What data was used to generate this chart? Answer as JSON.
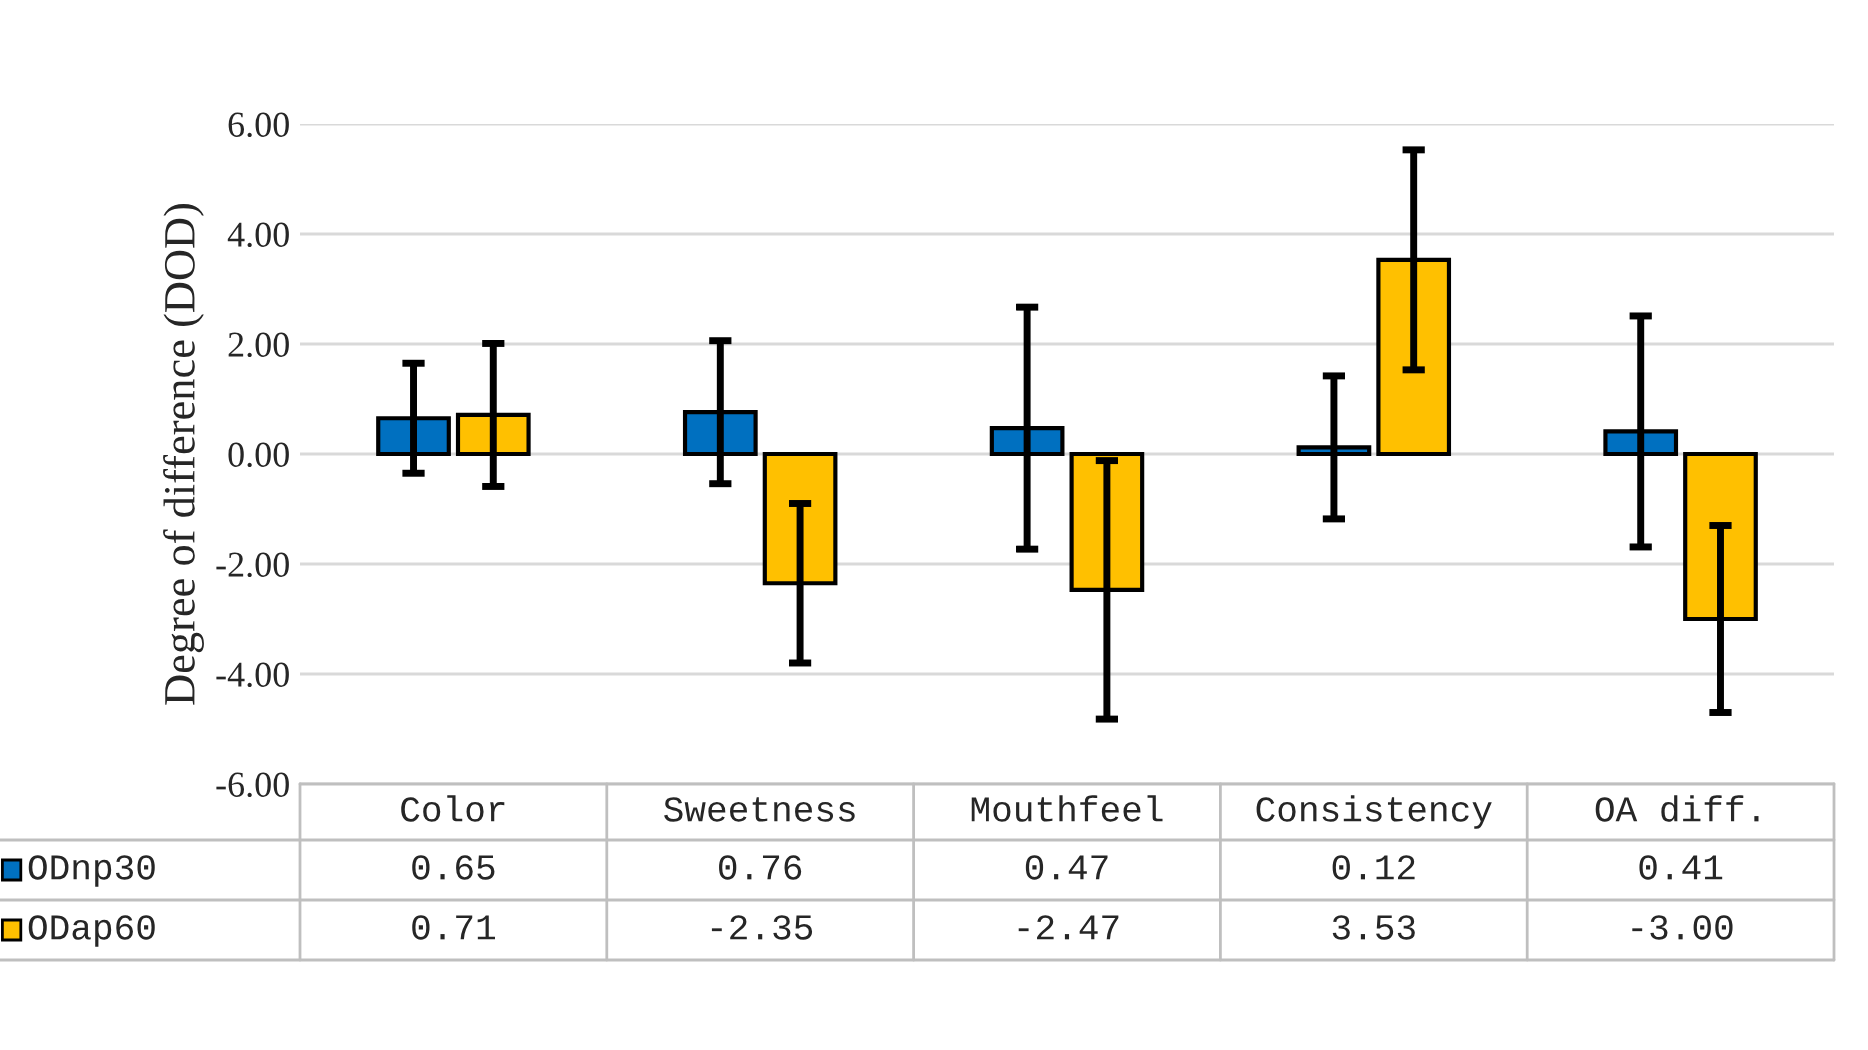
{
  "chart_data": {
    "type": "bar",
    "ylabel": "Degree of difference (DOD)",
    "categories": [
      "Color",
      "Sweetness",
      "Mouthfeel",
      "Consistency",
      "OA diff."
    ],
    "series": [
      {
        "name": "ODnp30",
        "color": "#0070c0",
        "values": [
          0.65,
          0.76,
          0.47,
          0.12,
          0.41
        ],
        "errors": [
          1.0,
          1.3,
          2.2,
          1.3,
          2.1
        ],
        "value_labels": [
          "0.65",
          "0.76",
          "0.47",
          "0.12",
          "0.41"
        ]
      },
      {
        "name": "ODap60",
        "color": "#ffc000",
        "values": [
          0.71,
          -2.35,
          -2.47,
          3.53,
          -3.0
        ],
        "errors": [
          1.3,
          1.45,
          2.35,
          2.0,
          1.7
        ],
        "value_labels": [
          "0.71",
          "-2.35",
          "-2.47",
          "3.53",
          "-3.00"
        ]
      }
    ],
    "ylim": [
      -6,
      6
    ],
    "yticks": [
      {
        "value": -6,
        "label": "-6.00"
      },
      {
        "value": -4,
        "label": "-4.00"
      },
      {
        "value": -2,
        "label": "-2.00"
      },
      {
        "value": 0,
        "label": "0.00"
      },
      {
        "value": 2,
        "label": "2.00"
      },
      {
        "value": 4,
        "label": "4.00"
      },
      {
        "value": 6,
        "label": "6.00"
      }
    ],
    "grid": "y",
    "legend": "bottom left"
  }
}
